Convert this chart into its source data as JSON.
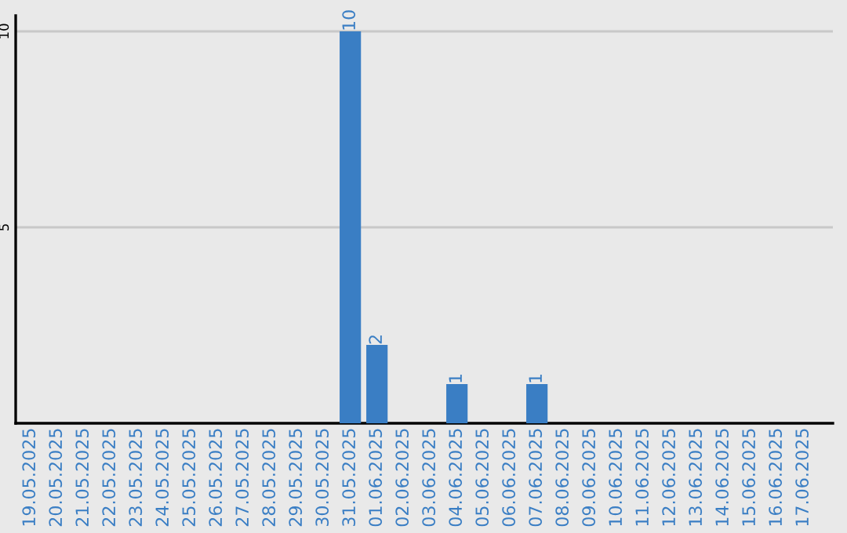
{
  "chart_data": {
    "type": "bar",
    "categories": [
      "19.05.2025",
      "20.05.2025",
      "21.05.2025",
      "22.05.2025",
      "23.05.2025",
      "24.05.2025",
      "25.05.2025",
      "26.05.2025",
      "27.05.2025",
      "28.05.2025",
      "29.05.2025",
      "30.05.2025",
      "31.05.2025",
      "01.06.2025",
      "02.06.2025",
      "03.06.2025",
      "04.06.2025",
      "05.06.2025",
      "06.06.2025",
      "07.06.2025",
      "08.06.2025",
      "09.06.2025",
      "10.06.2025",
      "11.06.2025",
      "12.06.2025",
      "13.06.2025",
      "14.06.2025",
      "15.06.2025",
      "16.06.2025",
      "17.06.2025"
    ],
    "values": [
      0,
      0,
      0,
      0,
      0,
      0,
      0,
      0,
      0,
      0,
      0,
      0,
      10,
      2,
      0,
      0,
      1,
      0,
      0,
      1,
      0,
      0,
      0,
      0,
      0,
      0,
      0,
      0,
      0,
      0
    ],
    "value_labels": [
      null,
      null,
      null,
      null,
      null,
      null,
      null,
      null,
      null,
      null,
      null,
      null,
      "10",
      "2",
      null,
      null,
      "1",
      null,
      null,
      "1",
      null,
      null,
      null,
      null,
      null,
      null,
      null,
      null,
      null,
      null
    ],
    "color": "#3a7ec4",
    "ylim": [
      0,
      10.4
    ],
    "yticks": [
      5,
      10
    ],
    "grid": "y"
  }
}
